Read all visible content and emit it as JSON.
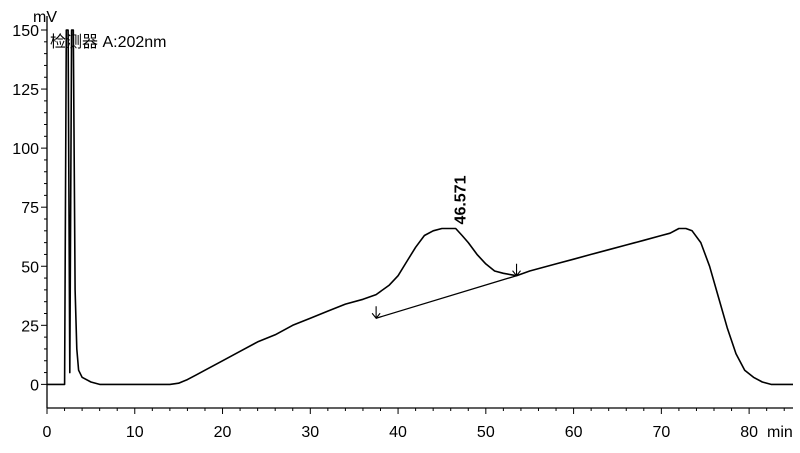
{
  "chart_data": {
    "type": "line",
    "y_unit": "mV",
    "x_unit": "min",
    "xlim": [
      0,
      85
    ],
    "ylim": [
      -10,
      150
    ],
    "x_ticks": [
      0,
      10,
      20,
      30,
      40,
      50,
      60,
      70,
      80
    ],
    "y_ticks": [
      0,
      25,
      50,
      75,
      100,
      125,
      150
    ],
    "x_tick_labels": [
      "0",
      "10",
      "20",
      "30",
      "40",
      "50",
      "60",
      "70",
      "80"
    ],
    "y_tick_labels": [
      "0",
      "25",
      "50",
      "75",
      "100",
      "125",
      "150"
    ],
    "grid": false,
    "legend": "none",
    "detector_label": "检测器 A:202nm",
    "peak_label": "46.571",
    "baseline": {
      "x": [
        37.5,
        53.5
      ],
      "y": [
        28,
        46
      ]
    },
    "integration_markers": [
      {
        "x": 37.5,
        "y": 28
      },
      {
        "x": 53.5,
        "y": 46
      }
    ],
    "series": [
      {
        "x": [
          0,
          2.0,
          2.2,
          2.4,
          2.6,
          2.8,
          3.0,
          3.2,
          3.4,
          3.6,
          4.0,
          5.0,
          6.0,
          8.0,
          10,
          12,
          14,
          15,
          16,
          17,
          18,
          20,
          22,
          24,
          26,
          28,
          30,
          32,
          34,
          36,
          37.5,
          39,
          40,
          41,
          42,
          43,
          44,
          45,
          45.8,
          46.571,
          47.3,
          48,
          49,
          50,
          51,
          52,
          53.5,
          55,
          58,
          60,
          62,
          64,
          66,
          68,
          70,
          71,
          72,
          72.8,
          73.5,
          74.5,
          75.5,
          76.5,
          77.5,
          78.5,
          79.5,
          80.5,
          81.5,
          82.5,
          83.5,
          84.5,
          85
        ],
        "y": [
          0,
          0,
          150,
          150,
          5,
          150,
          150,
          40,
          15,
          6,
          3,
          1,
          0,
          0,
          0,
          0,
          0,
          0.5,
          2,
          4,
          6,
          10,
          14,
          18,
          21,
          25,
          28,
          31,
          34,
          36,
          38,
          42,
          46,
          52,
          58,
          63,
          65,
          66,
          66,
          66,
          63,
          60,
          55,
          51,
          48,
          47,
          46,
          48,
          51,
          53,
          55,
          57,
          59,
          61,
          63,
          64,
          66,
          66,
          65,
          60,
          50,
          37,
          24,
          13,
          6,
          3,
          1,
          0,
          0,
          0,
          0
        ]
      }
    ]
  }
}
